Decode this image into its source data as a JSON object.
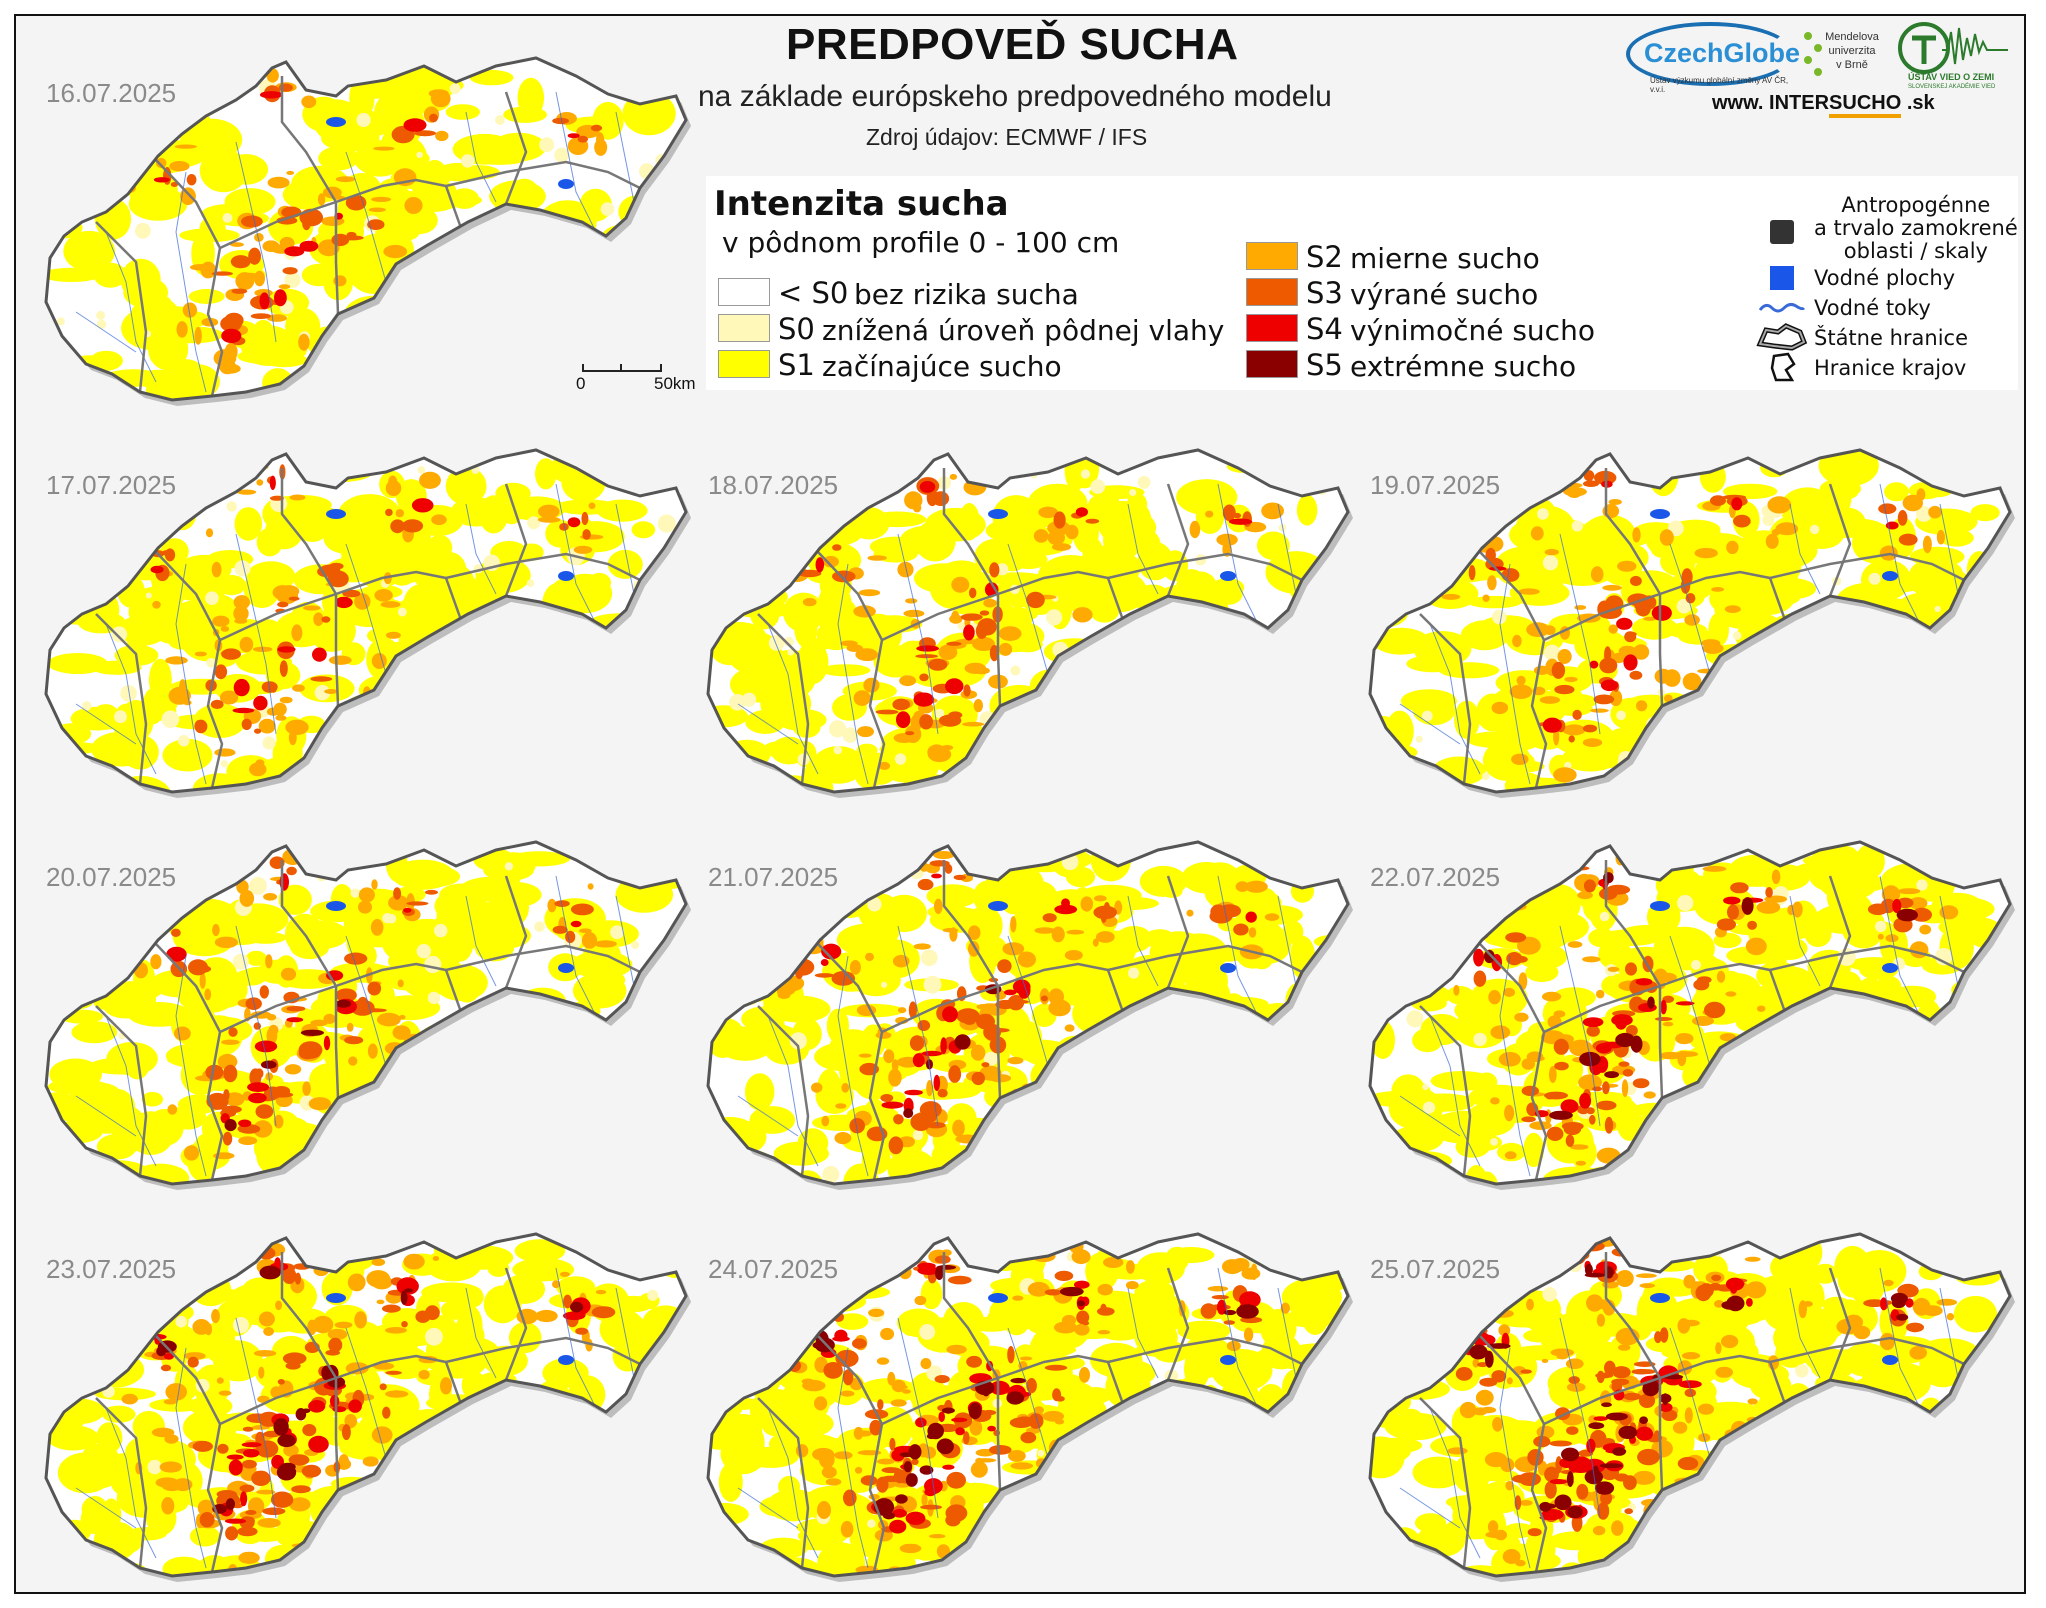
{
  "header": {
    "title": "PREDPOVEĎ SUCHA",
    "subtitle": "na základe európskeho predpovedného modelu",
    "source": "Zdroj údajov: ECMWF / IFS"
  },
  "logos": {
    "czechglobe": "CzechGlobe",
    "czechglobe_tagline": "Ústav výzkumu globální změny AV ČR, v.v.i.",
    "mendel": "Mendelova univerzita v Brně",
    "mendel_lines": [
      "Mendelova",
      "univerzita",
      "v Brně"
    ],
    "uvz": "ÚSTAV VIED O ZEMI",
    "uvz_sub": "SLOVENSKEJ AKADÉMIE VIED",
    "website_prefix": "www. INTER",
    "website_accent": "SUCHO",
    "website_suffix": " .sk"
  },
  "legend": {
    "title": "Intenzita sucha",
    "subtitle": "v pôdnom profile 0 - 100 cm",
    "classes": [
      {
        "code": "< S0",
        "label": "bez rizika sucha",
        "color": "#ffffff"
      },
      {
        "code": "S0",
        "label": "znížená úroveň pôdnej vlahy",
        "color": "#fff8b8"
      },
      {
        "code": "S1",
        "label": "začínajúce sucho",
        "color": "#ffff00"
      },
      {
        "code": "S2",
        "label": "mierne sucho",
        "color": "#ffaa00"
      },
      {
        "code": "S3",
        "label": "výrané sucho",
        "color": "#ee5a00"
      },
      {
        "code": "S4",
        "label": "výnimočné sucho",
        "color": "#ee0000"
      },
      {
        "code": "S5",
        "label": "extrémne sucho",
        "color": "#8a0000"
      }
    ],
    "symbols": {
      "anthropogenic": "Antropogénne a trvalo zamokrené oblasti / skaly",
      "anthropogenic_lines": [
        "Antropogénne",
        "a trvalo zamokrené",
        "oblasti / skaly"
      ],
      "water_bodies": "Vodné plochy",
      "rivers": "Vodné toky",
      "state_border": "Štátne hranice",
      "region_border": "Hranice krajov"
    },
    "anthropogenic_color": "#333333",
    "water_color": "#1a56e8",
    "river_color": "#3a6ad8"
  },
  "scale": {
    "start": "0",
    "end": "50km"
  },
  "maps": [
    {
      "date": "16.07.2025",
      "drought": {
        "s0": 0.15,
        "s1": 0.5,
        "s2": 0.14,
        "s3": 0.07,
        "s4": 0.02,
        "s5": 0.0
      }
    },
    {
      "date": "17.07.2025",
      "drought": {
        "s0": 0.14,
        "s1": 0.5,
        "s2": 0.15,
        "s3": 0.08,
        "s4": 0.02,
        "s5": 0.0
      }
    },
    {
      "date": "18.07.2025",
      "drought": {
        "s0": 0.14,
        "s1": 0.52,
        "s2": 0.16,
        "s3": 0.08,
        "s4": 0.02,
        "s5": 0.0
      }
    },
    {
      "date": "19.07.2025",
      "drought": {
        "s0": 0.13,
        "s1": 0.53,
        "s2": 0.17,
        "s3": 0.09,
        "s4": 0.02,
        "s5": 0.0
      }
    },
    {
      "date": "20.07.2025",
      "drought": {
        "s0": 0.1,
        "s1": 0.55,
        "s2": 0.18,
        "s3": 0.11,
        "s4": 0.03,
        "s5": 0.01
      }
    },
    {
      "date": "21.07.2025",
      "drought": {
        "s0": 0.09,
        "s1": 0.55,
        "s2": 0.2,
        "s3": 0.12,
        "s4": 0.04,
        "s5": 0.01
      }
    },
    {
      "date": "22.07.2025",
      "drought": {
        "s0": 0.08,
        "s1": 0.54,
        "s2": 0.21,
        "s3": 0.13,
        "s4": 0.05,
        "s5": 0.02
      }
    },
    {
      "date": "23.07.2025",
      "drought": {
        "s0": 0.06,
        "s1": 0.48,
        "s2": 0.24,
        "s3": 0.15,
        "s4": 0.06,
        "s5": 0.04
      }
    },
    {
      "date": "24.07.2025",
      "drought": {
        "s0": 0.05,
        "s1": 0.44,
        "s2": 0.26,
        "s3": 0.16,
        "s4": 0.07,
        "s5": 0.06
      }
    },
    {
      "date": "25.07.2025",
      "drought": {
        "s0": 0.05,
        "s1": 0.4,
        "s2": 0.27,
        "s3": 0.17,
        "s4": 0.08,
        "s5": 0.08
      }
    }
  ]
}
